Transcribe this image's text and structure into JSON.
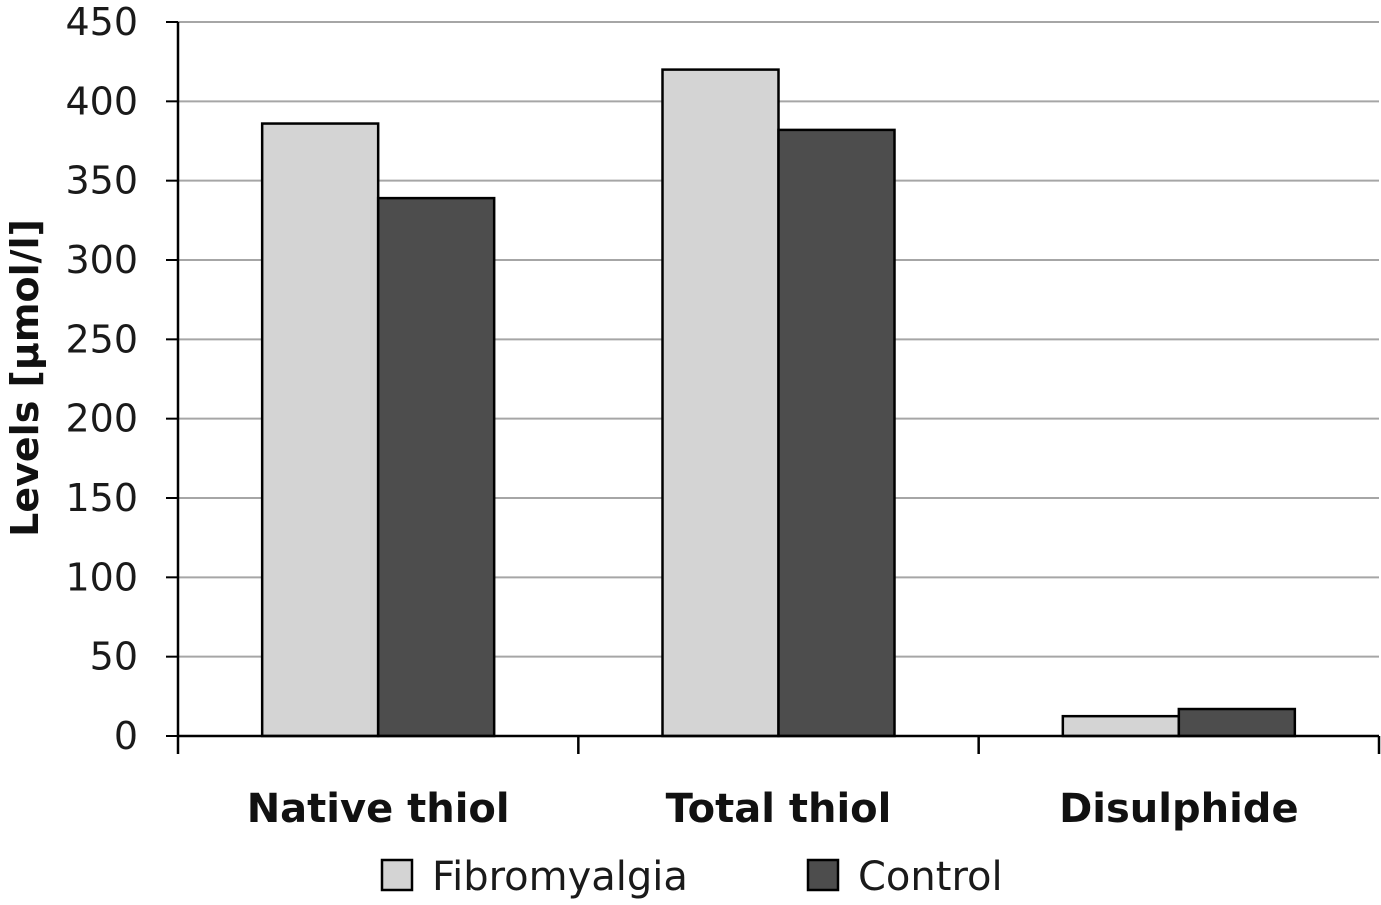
{
  "chart_data": {
    "type": "bar",
    "title": "",
    "xlabel": "",
    "ylabel": "Levels [µmol/l]",
    "categories": [
      "Native thiol",
      "Total thiol",
      "Disulphide"
    ],
    "series": [
      {
        "name": "Fibromyalgia",
        "color": "#d4d4d4",
        "values": [
          386,
          420,
          12.5
        ]
      },
      {
        "name": "Control",
        "color": "#4d4d4d",
        "values": [
          339,
          382,
          17
        ]
      }
    ],
    "ylim": [
      0,
      450
    ],
    "yticks": [
      0,
      50,
      100,
      150,
      200,
      250,
      300,
      350,
      400,
      450
    ],
    "grid": true,
    "legend": "bottom"
  }
}
